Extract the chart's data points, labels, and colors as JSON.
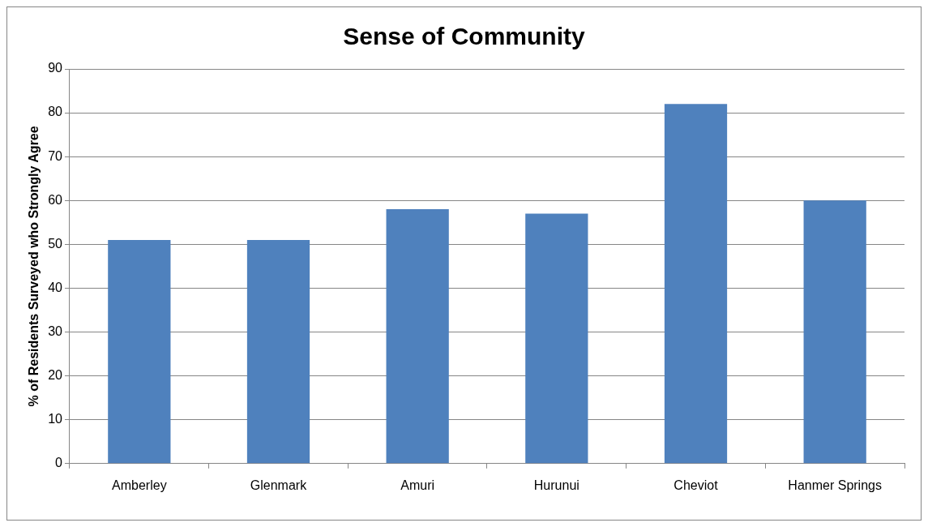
{
  "chart_data": {
    "type": "bar",
    "title": "Sense of Community",
    "ylabel": "% of Residents Surveyed who Strongly Agree",
    "categories": [
      "Amberley",
      "Glenmark",
      "Amuri",
      "Hurunui",
      "Cheviot",
      "Hanmer Springs"
    ],
    "values": [
      51,
      51,
      58,
      57,
      82,
      60
    ],
    "color": "#4f81bd",
    "ylim": [
      0,
      90
    ],
    "yticks": [
      0,
      10,
      20,
      30,
      40,
      50,
      60,
      70,
      80,
      90
    ],
    "grid": "y",
    "legend": false
  }
}
